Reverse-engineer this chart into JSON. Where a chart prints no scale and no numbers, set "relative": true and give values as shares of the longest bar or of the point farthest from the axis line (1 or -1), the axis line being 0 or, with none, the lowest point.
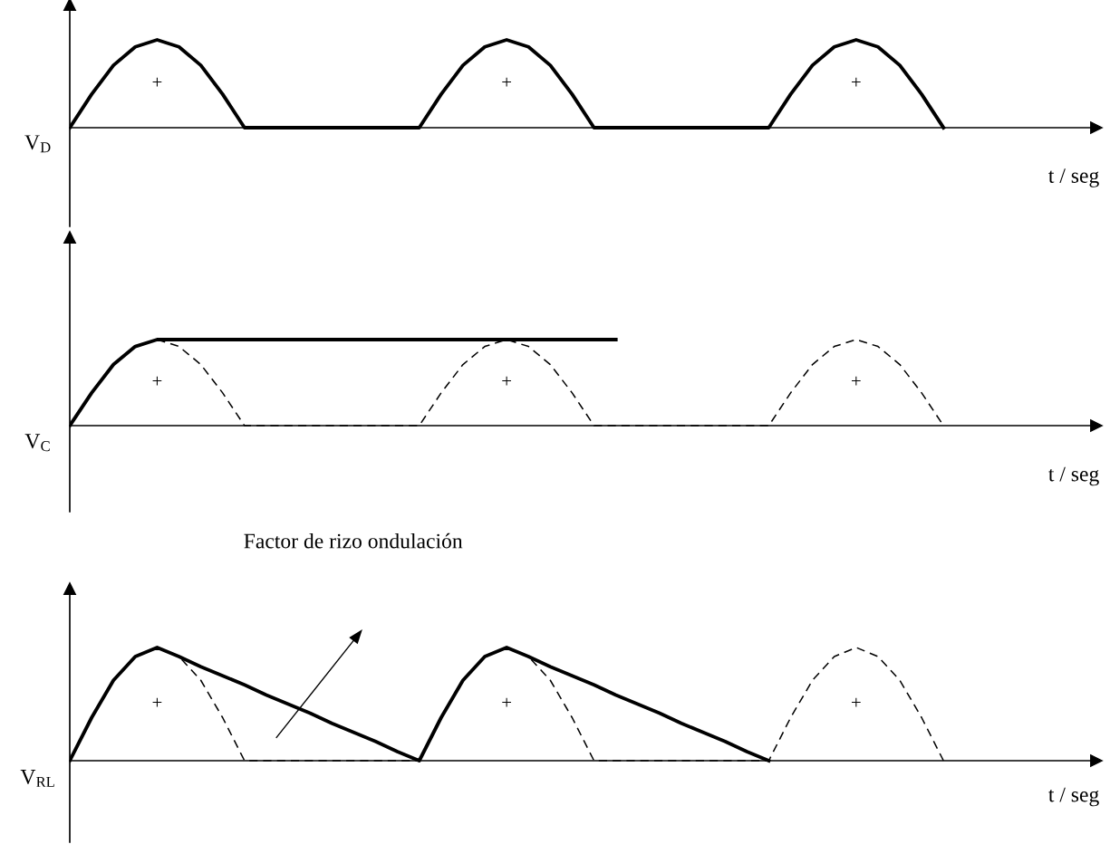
{
  "chart_data": [
    {
      "type": "line",
      "relative": true,
      "tick_labels": false,
      "ylabel": "V$_{D}$",
      "xlabel": "t / seg",
      "categories": [
        null,
        null,
        null,
        null,
        null,
        null,
        null,
        null,
        null,
        null,
        null,
        null,
        null,
        null,
        null,
        null,
        null,
        null,
        null,
        null,
        null,
        null,
        null,
        null,
        null,
        null,
        null,
        null,
        null,
        null,
        null,
        null,
        null,
        null,
        null,
        null,
        null,
        null,
        null,
        null,
        null,
        null,
        null,
        null,
        null,
        null,
        null,
        null
      ],
      "series": [
        {
          "color": "#000000",
          "line_style": "solid",
          "values": [
            0,
            0.38,
            0.71,
            0.92,
            1,
            0.92,
            0.71,
            0.38,
            0,
            0,
            0,
            0,
            0,
            0,
            0,
            0,
            0,
            0.38,
            0.71,
            0.92,
            1,
            0.92,
            0.71,
            0.38,
            0,
            0,
            0,
            0,
            0,
            0,
            0,
            0,
            0,
            0.38,
            0.71,
            0.92,
            1,
            0.92,
            0.71,
            0.38,
            0,
            null,
            null,
            null,
            null,
            null,
            null,
            null
          ]
        }
      ],
      "annotations": [
        "+",
        "+",
        "+"
      ]
    },
    {
      "type": "line",
      "relative": true,
      "tick_labels": false,
      "ylabel": "V$_{C}$",
      "xlabel": "t / seg",
      "categories": [
        null,
        null,
        null,
        null,
        null,
        null,
        null,
        null,
        null,
        null,
        null,
        null,
        null,
        null,
        null,
        null,
        null,
        null,
        null,
        null,
        null,
        null,
        null,
        null,
        null,
        null,
        null,
        null,
        null,
        null,
        null,
        null,
        null,
        null,
        null,
        null,
        null,
        null,
        null,
        null,
        null,
        null,
        null,
        null,
        null,
        null,
        null,
        null
      ],
      "series": [
        {
          "color": "#000000",
          "line_style": "solid",
          "values": [
            0,
            0.38,
            0.71,
            0.92,
            1,
            1,
            1,
            1,
            1,
            1,
            1,
            1,
            1,
            1,
            1,
            1,
            1,
            1,
            1,
            1,
            1,
            1,
            1,
            1,
            1,
            1,
            null,
            null,
            null,
            null,
            null,
            null,
            null,
            null,
            null,
            null,
            null,
            null,
            null,
            null,
            null,
            null,
            null,
            null,
            null,
            null,
            null,
            null
          ]
        },
        {
          "color": "#000000",
          "line_style": "dashed",
          "values": [
            null,
            null,
            null,
            null,
            1,
            0.92,
            0.71,
            0.38,
            0,
            0,
            0,
            0,
            0,
            0,
            0,
            0,
            0,
            0.38,
            0.71,
            0.92,
            1,
            0.92,
            0.71,
            0.38,
            0,
            0,
            0,
            0,
            0,
            0,
            0,
            0,
            0,
            0.38,
            0.71,
            0.92,
            1,
            0.92,
            0.71,
            0.38,
            0,
            null,
            null,
            null,
            null,
            null,
            null,
            null
          ]
        }
      ],
      "annotations": [
        "+",
        "+",
        "+"
      ]
    },
    {
      "type": "line",
      "relative": true,
      "tick_labels": false,
      "ylabel": "V$_{RL}$",
      "xlabel": "t / seg",
      "categories": [
        null,
        null,
        null,
        null,
        null,
        null,
        null,
        null,
        null,
        null,
        null,
        null,
        null,
        null,
        null,
        null,
        null,
        null,
        null,
        null,
        null,
        null,
        null,
        null,
        null,
        null,
        null,
        null,
        null,
        null,
        null,
        null,
        null,
        null,
        null,
        null,
        null,
        null,
        null,
        null,
        null,
        null,
        null,
        null,
        null,
        null,
        null,
        null
      ],
      "series": [
        {
          "color": "#000000",
          "line_style": "solid",
          "values": [
            0,
            0.38,
            0.71,
            0.92,
            1,
            0.92,
            0.83,
            0.75,
            0.67,
            0.58,
            0.5,
            0.42,
            0.33,
            0.25,
            0.17,
            0.08,
            0,
            0.38,
            0.71,
            0.92,
            1,
            0.92,
            0.83,
            0.75,
            0.67,
            0.58,
            0.5,
            0.42,
            0.33,
            0.25,
            0.17,
            0.08,
            0,
            null,
            null,
            null,
            null,
            null,
            null,
            null,
            null,
            null,
            null,
            null,
            null,
            null,
            null,
            null
          ]
        },
        {
          "color": "#000000",
          "line_style": "dashed",
          "values": [
            null,
            null,
            null,
            null,
            1,
            0.92,
            0.71,
            0.38,
            0,
            0,
            0,
            0,
            0,
            0,
            0,
            0,
            0,
            null,
            null,
            null,
            1,
            0.92,
            0.71,
            0.38,
            0,
            0,
            0,
            0,
            0,
            0,
            0,
            0,
            0,
            0.38,
            0.71,
            0.92,
            1,
            0.92,
            0.71,
            0.38,
            0,
            null,
            null,
            null,
            null,
            null,
            null,
            null
          ]
        }
      ],
      "annotations": [
        "+",
        "+",
        "+",
        "Factor de rizo ondulación"
      ]
    }
  ]
}
